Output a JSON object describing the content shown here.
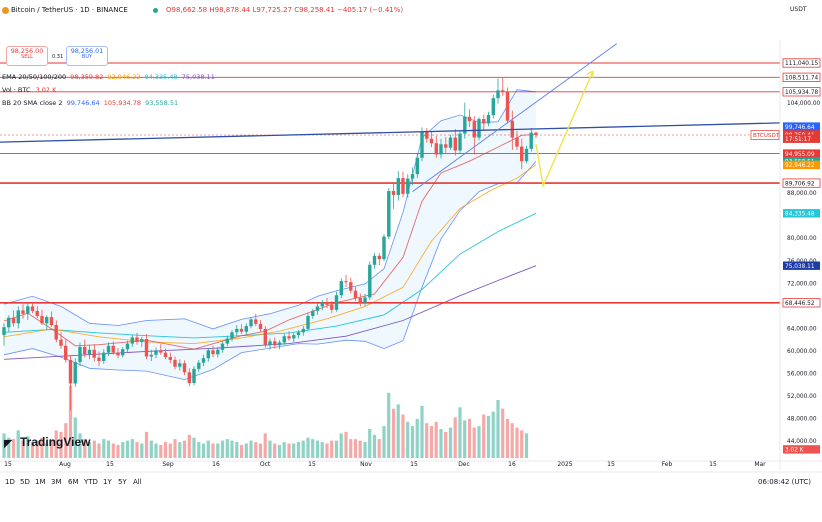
{
  "header": {
    "symbol": "Bitcoin / TetherUS · 1D · BINANCE",
    "ohlc": "O98,662.58 H98,878.44 L97,725.27 C98,258.41 −405.17 (−0.41%)",
    "sell_value": "98,256.00",
    "sell_label": "SELL",
    "spread": "0.31",
    "buy_value": "98,256.01",
    "buy_label": "BUY",
    "currency": "USDT"
  },
  "indicators": {
    "ema_label": "EMA 20/50/100/200",
    "ema_values": [
      "98,359.82",
      "92,946.22",
      "84,335.48",
      "75,038.11"
    ],
    "vol_label": "Vol · BTC",
    "vol_value": "3.02 K",
    "bb_label": "BB 20 SMA close 2",
    "bb_values": [
      "99,746.64",
      "105,934.78",
      "93,558.51"
    ]
  },
  "colors": {
    "ema20": "#e53935",
    "ema50": "#ff9800",
    "ema100": "#26c6da",
    "ema200": "#7e57c2",
    "up": "#26a69a",
    "down": "#ef5350",
    "bb": "#2962ff",
    "level": "#e53935",
    "trend": "#2f4fa8",
    "projection": "#f2e34a"
  },
  "price_axis": {
    "ticks": [
      "104,000.00",
      "88,000.00",
      "80,000.00",
      "76,000.00",
      "72,000.00",
      "64,000.00",
      "60,000.00",
      "56,000.00",
      "52,000.00",
      "48,000.00",
      "44,000.00"
    ],
    "badges": [
      {
        "text": "111,040.15",
        "price": 111040
      },
      {
        "text": "108,511.74",
        "price": 108512
      },
      {
        "text": "105,934.78",
        "price": 105935
      },
      {
        "text": "99,746.64",
        "price": 99747
      },
      {
        "text": "98,359.82",
        "price": 98360
      },
      {
        "text": "98,258.41",
        "price": 98258
      },
      {
        "text": "17:51:17",
        "price": 97600
      },
      {
        "text": "94,955.09",
        "price": 94955
      },
      {
        "text": "93,558.51",
        "price": 93559
      },
      {
        "text": "92,946.22",
        "price": 92946
      },
      {
        "text": "89,706.92",
        "price": 89707
      },
      {
        "text": "84,335.48",
        "price": 84335
      },
      {
        "text": "75,038.11",
        "price": 75038
      },
      {
        "text": "68,446.52",
        "price": 68447
      },
      {
        "text": "3.02 K",
        "price": 42400
      }
    ],
    "ticker_label": "BTCUSDT"
  },
  "time_axis": [
    "15",
    "Aug",
    "15",
    "Sep",
    "16",
    "Oct",
    "15",
    "Nov",
    "15",
    "Dec",
    "16",
    "2025",
    "15",
    "Feb",
    "15",
    "Mar"
  ],
  "timeframes": [
    "1D",
    "5D",
    "1M",
    "3M",
    "6M",
    "YTD",
    "1Y",
    "5Y",
    "All"
  ],
  "clock": "06:08:42 (UTC)",
  "logo_text": "TradingView",
  "chart_data": {
    "type": "candlestick",
    "price_range": [
      43000,
      113000
    ],
    "levels": [
      111040,
      108512,
      105935,
      94955,
      89707,
      68447
    ],
    "trendline": {
      "from": [
        0,
        97000
      ],
      "to": [
        128,
        100400
      ]
    },
    "ema20": [
      [
        0,
        65200
      ],
      [
        5,
        66600
      ],
      [
        10,
        63800
      ],
      [
        15,
        60800
      ],
      [
        20,
        61000
      ],
      [
        30,
        61800
      ],
      [
        40,
        60200
      ],
      [
        50,
        62600
      ],
      [
        55,
        63400
      ],
      [
        60,
        65400
      ],
      [
        70,
        68500
      ],
      [
        78,
        70000
      ],
      [
        84,
        76500
      ],
      [
        88,
        86500
      ],
      [
        92,
        91500
      ],
      [
        98,
        93600
      ],
      [
        104,
        96100
      ],
      [
        109,
        98200
      ],
      [
        112,
        98360
      ]
    ],
    "ema50": [
      [
        0,
        62400
      ],
      [
        10,
        63800
      ],
      [
        20,
        62400
      ],
      [
        30,
        61500
      ],
      [
        40,
        61200
      ],
      [
        50,
        62200
      ],
      [
        58,
        63400
      ],
      [
        68,
        65600
      ],
      [
        76,
        67800
      ],
      [
        84,
        71200
      ],
      [
        90,
        79400
      ],
      [
        96,
        85200
      ],
      [
        102,
        88200
      ],
      [
        108,
        90600
      ],
      [
        112,
        92946
      ]
    ],
    "ema100": [
      [
        0,
        63200
      ],
      [
        10,
        63700
      ],
      [
        20,
        63100
      ],
      [
        30,
        62600
      ],
      [
        40,
        62200
      ],
      [
        50,
        62600
      ],
      [
        60,
        63100
      ],
      [
        70,
        64300
      ],
      [
        80,
        66300
      ],
      [
        88,
        70800
      ],
      [
        96,
        77100
      ],
      [
        104,
        81100
      ],
      [
        112,
        84335
      ]
    ],
    "ema200": [
      [
        0,
        58400
      ],
      [
        15,
        59100
      ],
      [
        30,
        59800
      ],
      [
        45,
        60400
      ],
      [
        60,
        61200
      ],
      [
        72,
        62500
      ],
      [
        84,
        65300
      ],
      [
        96,
        69700
      ],
      [
        104,
        72400
      ],
      [
        112,
        75038
      ]
    ],
    "bb_upper": [
      [
        0,
        68200
      ],
      [
        6,
        69600
      ],
      [
        12,
        67800
      ],
      [
        18,
        64800
      ],
      [
        24,
        64400
      ],
      [
        30,
        65300
      ],
      [
        38,
        65600
      ],
      [
        44,
        63800
      ],
      [
        50,
        65500
      ],
      [
        56,
        66500
      ],
      [
        62,
        68000
      ],
      [
        66,
        69600
      ],
      [
        70,
        70600
      ],
      [
        76,
        71800
      ],
      [
        80,
        74500
      ],
      [
        84,
        84500
      ],
      [
        88,
        97800
      ],
      [
        92,
        100800
      ],
      [
        96,
        101800
      ],
      [
        100,
        100500
      ],
      [
        104,
        100600
      ],
      [
        108,
        106300
      ],
      [
        112,
        105935
      ]
    ],
    "bb_lower": [
      [
        0,
        59200
      ],
      [
        6,
        60300
      ],
      [
        12,
        58800
      ],
      [
        18,
        56800
      ],
      [
        24,
        56500
      ],
      [
        30,
        56300
      ],
      [
        38,
        54800
      ],
      [
        44,
        56600
      ],
      [
        50,
        59600
      ],
      [
        56,
        60400
      ],
      [
        62,
        61200
      ],
      [
        66,
        61100
      ],
      [
        72,
        61800
      ],
      [
        76,
        61600
      ],
      [
        80,
        60300
      ],
      [
        84,
        61700
      ],
      [
        88,
        71200
      ],
      [
        92,
        79800
      ],
      [
        96,
        84800
      ],
      [
        100,
        88200
      ],
      [
        104,
        89600
      ],
      [
        108,
        89800
      ],
      [
        112,
        93559
      ]
    ],
    "candles": [
      {
        "o": 62700,
        "h": 64800,
        "l": 60800,
        "c": 64100
      },
      {
        "o": 64100,
        "h": 66200,
        "l": 63300,
        "c": 65800
      },
      {
        "o": 65800,
        "h": 67100,
        "l": 64200,
        "c": 64800
      },
      {
        "o": 64800,
        "h": 67800,
        "l": 63900,
        "c": 67100
      },
      {
        "o": 67100,
        "h": 68200,
        "l": 65600,
        "c": 66500
      },
      {
        "o": 66500,
        "h": 68400,
        "l": 65400,
        "c": 67800
      },
      {
        "o": 67800,
        "h": 68600,
        "l": 66600,
        "c": 67000
      },
      {
        "o": 67000,
        "h": 67900,
        "l": 65700,
        "c": 66100
      },
      {
        "o": 66100,
        "h": 67200,
        "l": 64500,
        "c": 64800
      },
      {
        "o": 64800,
        "h": 66200,
        "l": 63700,
        "c": 65900
      },
      {
        "o": 65900,
        "h": 66900,
        "l": 64200,
        "c": 64500
      },
      {
        "o": 64500,
        "h": 65300,
        "l": 61400,
        "c": 61900
      },
      {
        "o": 61900,
        "h": 63200,
        "l": 60300,
        "c": 60800
      },
      {
        "o": 60800,
        "h": 61900,
        "l": 57800,
        "c": 58300
      },
      {
        "o": 58300,
        "h": 59100,
        "l": 49300,
        "c": 54100
      },
      {
        "o": 54100,
        "h": 58600,
        "l": 53500,
        "c": 57900
      },
      {
        "o": 57900,
        "h": 61400,
        "l": 57200,
        "c": 60600
      },
      {
        "o": 60600,
        "h": 61900,
        "l": 58700,
        "c": 59300
      },
      {
        "o": 59300,
        "h": 61000,
        "l": 58400,
        "c": 60100
      },
      {
        "o": 60100,
        "h": 61100,
        "l": 58000,
        "c": 58700
      },
      {
        "o": 58700,
        "h": 59800,
        "l": 57200,
        "c": 58100
      },
      {
        "o": 58100,
        "h": 60200,
        "l": 57600,
        "c": 59600
      },
      {
        "o": 59600,
        "h": 61400,
        "l": 59000,
        "c": 60800
      },
      {
        "o": 60800,
        "h": 61600,
        "l": 59200,
        "c": 59600
      },
      {
        "o": 59600,
        "h": 60400,
        "l": 58600,
        "c": 59100
      },
      {
        "o": 59100,
        "h": 60600,
        "l": 58700,
        "c": 60200
      },
      {
        "o": 60200,
        "h": 61700,
        "l": 59600,
        "c": 61200
      },
      {
        "o": 61200,
        "h": 62700,
        "l": 60600,
        "c": 62300
      },
      {
        "o": 62300,
        "h": 63100,
        "l": 61000,
        "c": 61500
      },
      {
        "o": 61500,
        "h": 62400,
        "l": 60600,
        "c": 62000
      },
      {
        "o": 62000,
        "h": 62900,
        "l": 58400,
        "c": 58900
      },
      {
        "o": 58900,
        "h": 60100,
        "l": 58100,
        "c": 59200
      },
      {
        "o": 59200,
        "h": 60500,
        "l": 58600,
        "c": 60000
      },
      {
        "o": 60000,
        "h": 61100,
        "l": 59200,
        "c": 59600
      },
      {
        "o": 59600,
        "h": 60300,
        "l": 58400,
        "c": 58800
      },
      {
        "o": 58800,
        "h": 59600,
        "l": 57700,
        "c": 58300
      },
      {
        "o": 58300,
        "h": 58900,
        "l": 56600,
        "c": 57100
      },
      {
        "o": 57100,
        "h": 58400,
        "l": 56400,
        "c": 57700
      },
      {
        "o": 57700,
        "h": 58200,
        "l": 55600,
        "c": 56100
      },
      {
        "o": 56100,
        "h": 56800,
        "l": 53600,
        "c": 54200
      },
      {
        "o": 54200,
        "h": 57200,
        "l": 53800,
        "c": 56700
      },
      {
        "o": 56700,
        "h": 58300,
        "l": 56100,
        "c": 57800
      },
      {
        "o": 57800,
        "h": 59200,
        "l": 57200,
        "c": 58600
      },
      {
        "o": 58600,
        "h": 60400,
        "l": 58000,
        "c": 60000
      },
      {
        "o": 60000,
        "h": 60800,
        "l": 58800,
        "c": 59300
      },
      {
        "o": 59300,
        "h": 60600,
        "l": 58700,
        "c": 60100
      },
      {
        "o": 60100,
        "h": 61600,
        "l": 59600,
        "c": 61200
      },
      {
        "o": 61200,
        "h": 62600,
        "l": 60700,
        "c": 62100
      },
      {
        "o": 62100,
        "h": 63600,
        "l": 61600,
        "c": 63200
      },
      {
        "o": 63200,
        "h": 64500,
        "l": 62600,
        "c": 63800
      },
      {
        "o": 63800,
        "h": 64600,
        "l": 62900,
        "c": 63300
      },
      {
        "o": 63300,
        "h": 64800,
        "l": 62700,
        "c": 64300
      },
      {
        "o": 64300,
        "h": 65900,
        "l": 63900,
        "c": 65500
      },
      {
        "o": 65500,
        "h": 66500,
        "l": 64300,
        "c": 64700
      },
      {
        "o": 64700,
        "h": 65400,
        "l": 63300,
        "c": 63800
      },
      {
        "o": 63800,
        "h": 64300,
        "l": 60500,
        "c": 61000
      },
      {
        "o": 61000,
        "h": 62100,
        "l": 60100,
        "c": 61600
      },
      {
        "o": 61600,
        "h": 62300,
        "l": 60300,
        "c": 60900
      },
      {
        "o": 60900,
        "h": 61800,
        "l": 60200,
        "c": 61400
      },
      {
        "o": 61400,
        "h": 62900,
        "l": 61000,
        "c": 62500
      },
      {
        "o": 62500,
        "h": 63400,
        "l": 61700,
        "c": 62100
      },
      {
        "o": 62100,
        "h": 63100,
        "l": 61500,
        "c": 62700
      },
      {
        "o": 62700,
        "h": 63600,
        "l": 62100,
        "c": 63200
      },
      {
        "o": 63200,
        "h": 64300,
        "l": 62600,
        "c": 63800
      },
      {
        "o": 63800,
        "h": 66600,
        "l": 63400,
        "c": 66100
      },
      {
        "o": 66100,
        "h": 67400,
        "l": 65600,
        "c": 67000
      },
      {
        "o": 67000,
        "h": 68300,
        "l": 66300,
        "c": 67800
      },
      {
        "o": 67800,
        "h": 68900,
        "l": 67100,
        "c": 68500
      },
      {
        "o": 68500,
        "h": 69300,
        "l": 67500,
        "c": 68100
      },
      {
        "o": 68100,
        "h": 68700,
        "l": 66600,
        "c": 67200
      },
      {
        "o": 67200,
        "h": 70400,
        "l": 66900,
        "c": 69800
      },
      {
        "o": 69800,
        "h": 72800,
        "l": 69300,
        "c": 72300
      },
      {
        "o": 72300,
        "h": 73400,
        "l": 71200,
        "c": 72100
      },
      {
        "o": 72100,
        "h": 72900,
        "l": 70100,
        "c": 70600
      },
      {
        "o": 70600,
        "h": 71300,
        "l": 68800,
        "c": 69300
      },
      {
        "o": 69300,
        "h": 70100,
        "l": 67800,
        "c": 68500
      },
      {
        "o": 68500,
        "h": 70000,
        "l": 67900,
        "c": 69400
      },
      {
        "o": 69400,
        "h": 75800,
        "l": 69000,
        "c": 75200
      },
      {
        "o": 75200,
        "h": 77300,
        "l": 74500,
        "c": 76800
      },
      {
        "o": 76800,
        "h": 77300,
        "l": 75100,
        "c": 76200
      },
      {
        "o": 76200,
        "h": 80600,
        "l": 75800,
        "c": 80200
      },
      {
        "o": 80200,
        "h": 88800,
        "l": 79800,
        "c": 88300
      },
      {
        "o": 88300,
        "h": 89900,
        "l": 85100,
        "c": 87600
      },
      {
        "o": 87600,
        "h": 91800,
        "l": 86600,
        "c": 90600
      },
      {
        "o": 90600,
        "h": 91700,
        "l": 87200,
        "c": 87800
      },
      {
        "o": 87800,
        "h": 91300,
        "l": 87100,
        "c": 90500
      },
      {
        "o": 90500,
        "h": 92500,
        "l": 89300,
        "c": 91300
      },
      {
        "o": 91300,
        "h": 94900,
        "l": 90600,
        "c": 94200
      },
      {
        "o": 94200,
        "h": 99600,
        "l": 93600,
        "c": 98800
      },
      {
        "o": 98800,
        "h": 99500,
        "l": 96900,
        "c": 97600
      },
      {
        "o": 97600,
        "h": 98900,
        "l": 96100,
        "c": 96800
      },
      {
        "o": 96800,
        "h": 98100,
        "l": 94200,
        "c": 94800
      },
      {
        "o": 94800,
        "h": 97600,
        "l": 94100,
        "c": 96600
      },
      {
        "o": 96600,
        "h": 97900,
        "l": 95100,
        "c": 96000
      },
      {
        "o": 96000,
        "h": 98300,
        "l": 95600,
        "c": 97800
      },
      {
        "o": 97800,
        "h": 99300,
        "l": 94600,
        "c": 95500
      },
      {
        "o": 95500,
        "h": 99000,
        "l": 95000,
        "c": 98500
      },
      {
        "o": 98500,
        "h": 104000,
        "l": 97600,
        "c": 101500
      },
      {
        "o": 101500,
        "h": 102800,
        "l": 99700,
        "c": 100700
      },
      {
        "o": 100700,
        "h": 101600,
        "l": 94800,
        "c": 97800
      },
      {
        "o": 97800,
        "h": 101400,
        "l": 97300,
        "c": 101100
      },
      {
        "o": 101100,
        "h": 101900,
        "l": 99200,
        "c": 100300
      },
      {
        "o": 100300,
        "h": 102400,
        "l": 99800,
        "c": 101800
      },
      {
        "o": 101800,
        "h": 105400,
        "l": 101200,
        "c": 104800
      },
      {
        "o": 104800,
        "h": 108300,
        "l": 103800,
        "c": 106200
      },
      {
        "o": 106200,
        "h": 108400,
        "l": 105200,
        "c": 105900
      },
      {
        "o": 105900,
        "h": 106700,
        "l": 100300,
        "c": 100800
      },
      {
        "o": 100800,
        "h": 102600,
        "l": 95600,
        "c": 97800
      },
      {
        "o": 97800,
        "h": 99000,
        "l": 95600,
        "c": 96200
      },
      {
        "o": 96200,
        "h": 97600,
        "l": 92200,
        "c": 93600
      },
      {
        "o": 93600,
        "h": 96300,
        "l": 93200,
        "c": 95800
      },
      {
        "o": 95800,
        "h": 99500,
        "l": 95300,
        "c": 98663
      },
      {
        "o": 98663,
        "h": 98878,
        "l": 97725,
        "c": 98258
      }
    ],
    "volume": [
      17,
      14,
      13,
      19,
      12,
      15,
      11,
      12,
      14,
      10,
      13,
      19,
      18,
      24,
      50,
      28,
      17,
      13,
      11,
      12,
      10,
      13,
      12,
      10,
      9,
      11,
      12,
      13,
      11,
      10,
      18,
      12,
      10,
      9,
      11,
      10,
      13,
      11,
      12,
      16,
      14,
      11,
      10,
      12,
      10,
      10,
      12,
      13,
      12,
      11,
      9,
      10,
      12,
      11,
      10,
      17,
      12,
      10,
      9,
      11,
      10,
      10,
      11,
      12,
      14,
      13,
      12,
      11,
      10,
      12,
      12,
      17,
      18,
      13,
      13,
      12,
      11,
      20,
      16,
      13,
      22,
      45,
      34,
      37,
      30,
      25,
      22,
      27,
      36,
      24,
      22,
      25,
      20,
      18,
      21,
      28,
      35,
      26,
      27,
      21,
      22,
      30,
      29,
      32,
      40,
      34,
      27,
      24,
      21,
      19,
      17
    ]
  }
}
